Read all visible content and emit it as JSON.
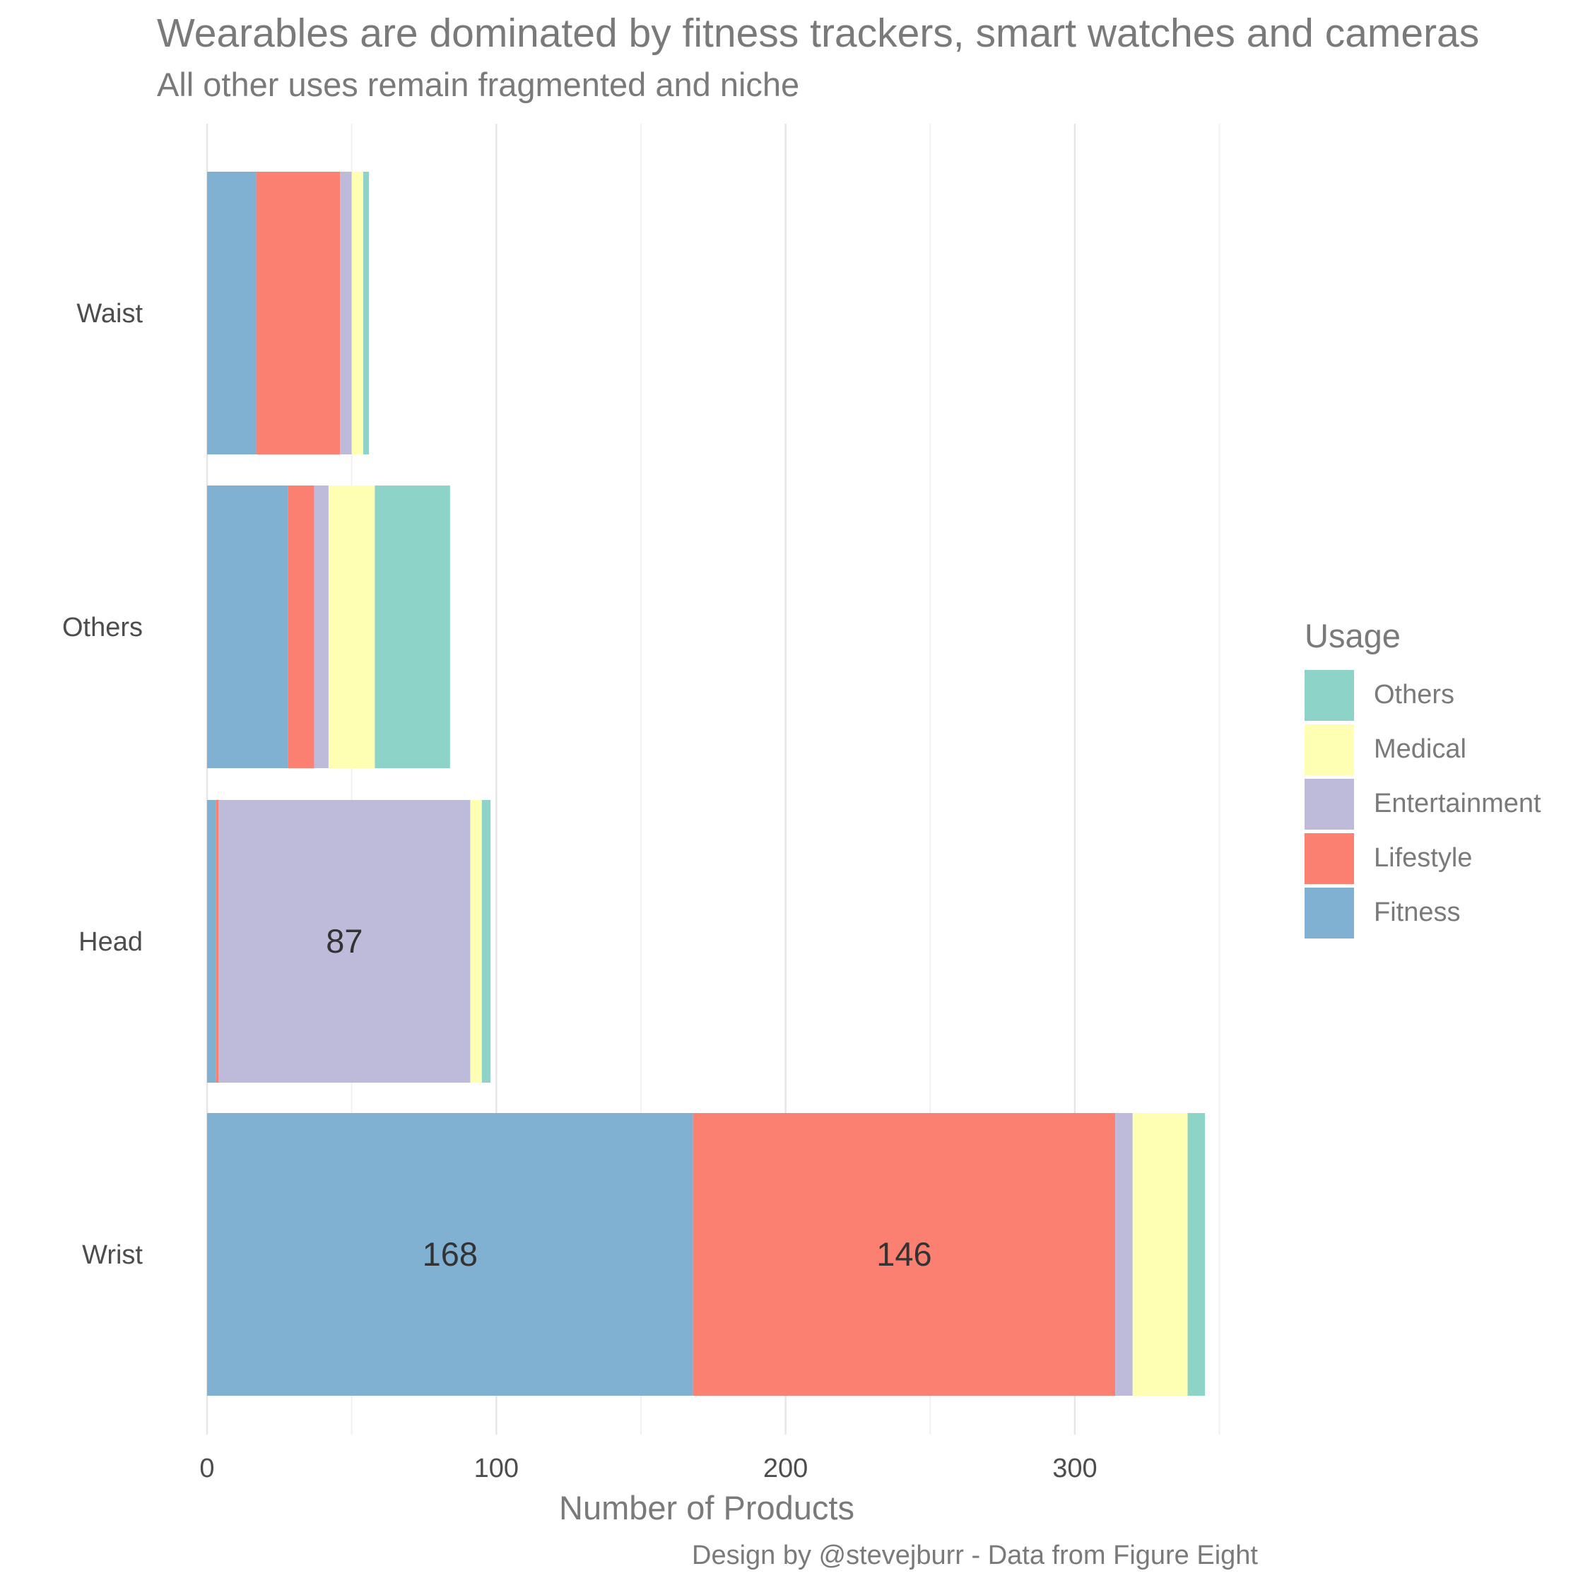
{
  "chart_data": {
    "type": "bar",
    "orientation": "horizontal",
    "stacked": true,
    "title": "Wearables are dominated by fitness trackers, smart watches and cameras",
    "subtitle": "All other uses remain fragmented and niche",
    "xlabel": "Number of Products",
    "ylabel": "",
    "xlim": [
      0,
      350
    ],
    "xticks": [
      0,
      100,
      200,
      300
    ],
    "categories": [
      "Wrist",
      "Head",
      "Others",
      "Waist"
    ],
    "series": [
      {
        "name": "Fitness",
        "color": "#80B1D3",
        "values": [
          168,
          3,
          28,
          17
        ]
      },
      {
        "name": "Lifestyle",
        "color": "#FB8072",
        "values": [
          146,
          1,
          9,
          29
        ]
      },
      {
        "name": "Entertainment",
        "color": "#BEBADA",
        "values": [
          6,
          87,
          5,
          4
        ]
      },
      {
        "name": "Medical",
        "color": "#FFFFB3",
        "values": [
          19,
          4,
          16,
          4
        ]
      },
      {
        "name": "Others",
        "color": "#8DD3C7",
        "values": [
          6,
          3,
          26,
          2
        ]
      }
    ],
    "data_labels": [
      {
        "category": "Wrist",
        "series": "Fitness",
        "text": "168"
      },
      {
        "category": "Wrist",
        "series": "Lifestyle",
        "text": "146"
      },
      {
        "category": "Head",
        "series": "Entertainment",
        "text": "87"
      }
    ],
    "grid": true,
    "legend": {
      "title": "Usage",
      "position": "right",
      "order": [
        "Others",
        "Medical",
        "Entertainment",
        "Lifestyle",
        "Fitness"
      ]
    },
    "caption": "Design by @stevejburr - Data from Figure Eight"
  }
}
